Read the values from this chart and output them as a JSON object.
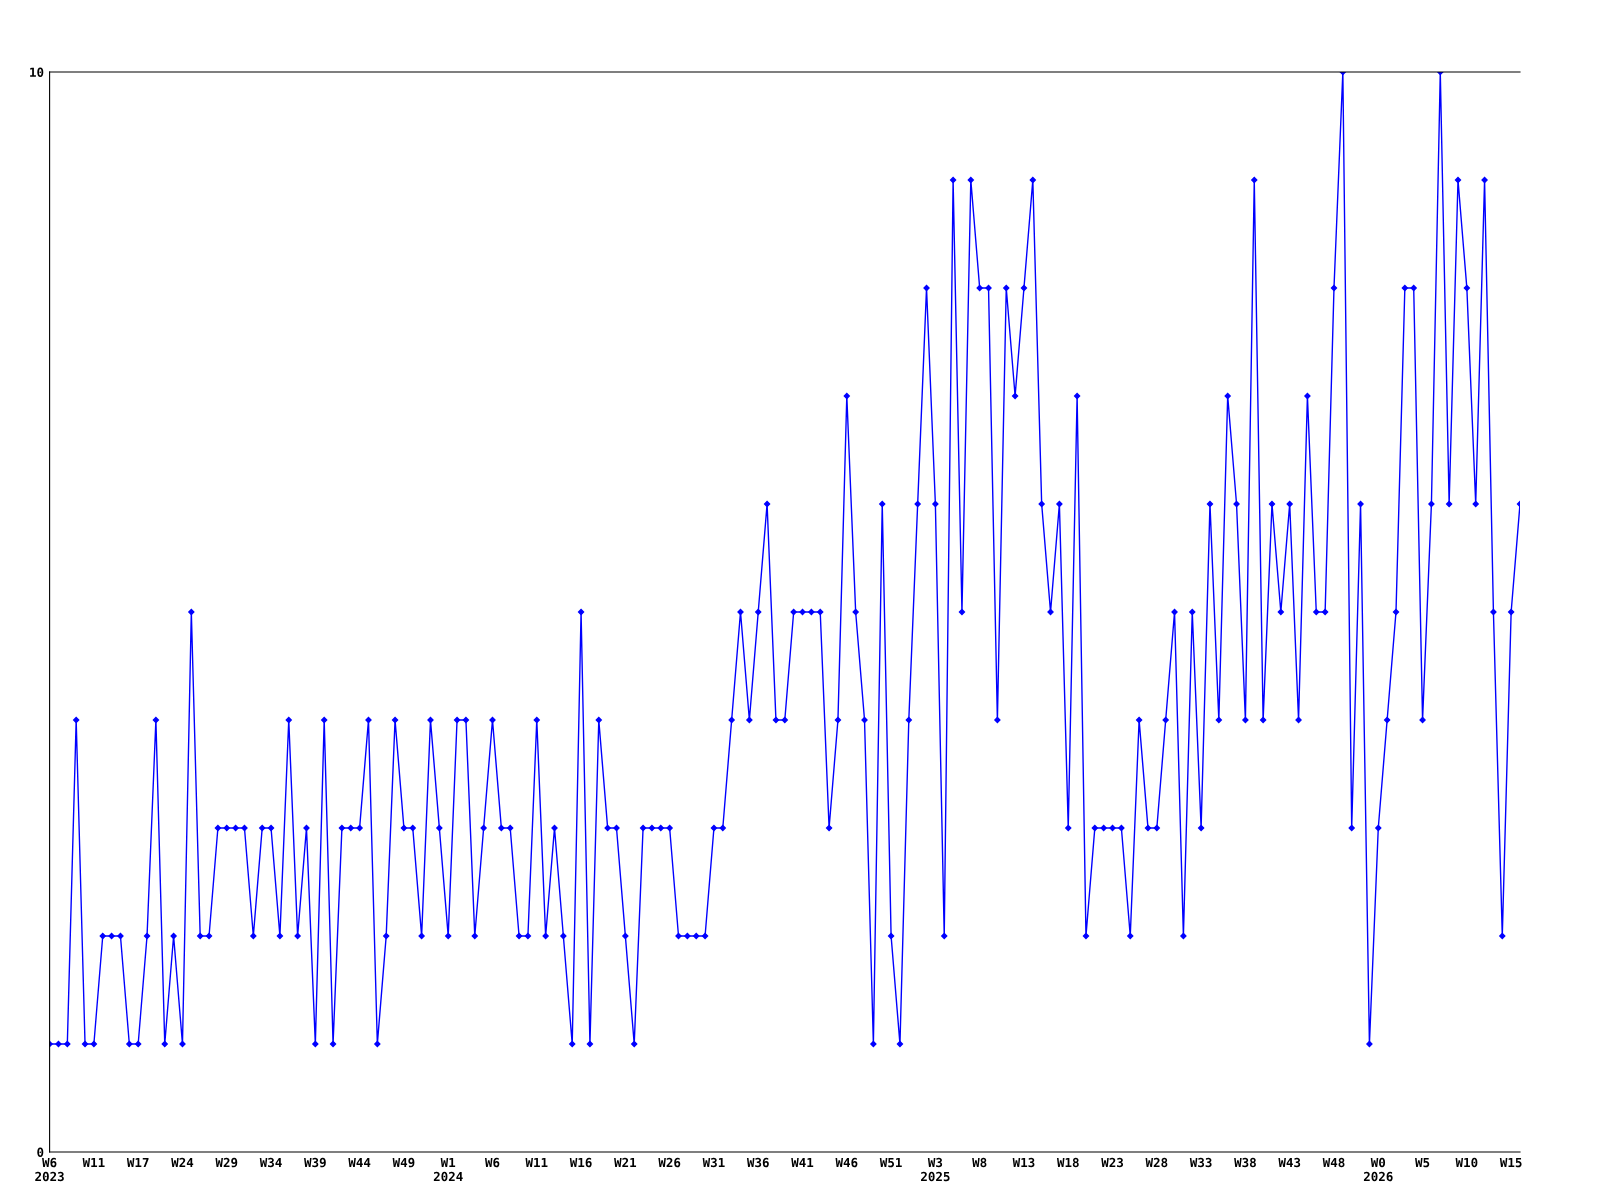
{
  "chart_data": {
    "type": "line",
    "categories": [
      "W6\n2023",
      null,
      null,
      null,
      null,
      "W11",
      null,
      null,
      null,
      null,
      "W17",
      null,
      null,
      null,
      null,
      "W24",
      null,
      null,
      null,
      null,
      "W29",
      null,
      null,
      null,
      null,
      "W34",
      null,
      null,
      null,
      null,
      "W39",
      null,
      null,
      null,
      null,
      "W44",
      null,
      null,
      null,
      null,
      "W49",
      null,
      null,
      null,
      null,
      "W1\n2024",
      null,
      null,
      null,
      null,
      "W6",
      null,
      null,
      null,
      null,
      "W11",
      null,
      null,
      null,
      null,
      "W16",
      null,
      null,
      null,
      null,
      "W21",
      null,
      null,
      null,
      null,
      "W26",
      null,
      null,
      null,
      null,
      "W31",
      null,
      null,
      null,
      null,
      "W36",
      null,
      null,
      null,
      null,
      "W41",
      null,
      null,
      null,
      null,
      "W46",
      null,
      null,
      null,
      null,
      "W51",
      null,
      null,
      null,
      null,
      "W3\n2025",
      null,
      null,
      null,
      null,
      "W8",
      null,
      null,
      null,
      null,
      "W13",
      null,
      null,
      null,
      null,
      "W18",
      null,
      null,
      null,
      null,
      "W23",
      null,
      null,
      null,
      null,
      "W28",
      null,
      null,
      null,
      null,
      "W33",
      null,
      null,
      null,
      null,
      "W38",
      null,
      null,
      null,
      null,
      "W43",
      null,
      null,
      null,
      null,
      "W48",
      null,
      null,
      null,
      null,
      "W0\n2026",
      null,
      null,
      null,
      null,
      "W5",
      null,
      null,
      null,
      null,
      "W10",
      null,
      null,
      null,
      null,
      "W15",
      null
    ],
    "series": [
      {
        "color": "#0000ff",
        "values": [
          1,
          1,
          1,
          4,
          1,
          1,
          2,
          2,
          2,
          1,
          1,
          2,
          4,
          1,
          2,
          1,
          5,
          2,
          2,
          3,
          3,
          3,
          3,
          2,
          3,
          3,
          2,
          4,
          2,
          3,
          1,
          4,
          1,
          3,
          3,
          3,
          4,
          1,
          2,
          4,
          3,
          3,
          2,
          4,
          3,
          2,
          4,
          4,
          2,
          3,
          4,
          3,
          3,
          2,
          2,
          4,
          2,
          3,
          2,
          1,
          5,
          1,
          4,
          3,
          3,
          2,
          1,
          3,
          3,
          3,
          3,
          2,
          2,
          2,
          2,
          3,
          3,
          4,
          5,
          4,
          5,
          6,
          4,
          4,
          5,
          5,
          5,
          5,
          3,
          4,
          7,
          5,
          4,
          1,
          6,
          2,
          1,
          4,
          6,
          8,
          6,
          2,
          9,
          5,
          9,
          8,
          8,
          4,
          8,
          7,
          8,
          9,
          6,
          5,
          6,
          3,
          7,
          2,
          3,
          3,
          3,
          3,
          2,
          4,
          3,
          3,
          4,
          5,
          2,
          5,
          3,
          6,
          4,
          7,
          6,
          4,
          9,
          4,
          6,
          5,
          6,
          4,
          7,
          5,
          5,
          8,
          10,
          3,
          6,
          1,
          3,
          4,
          5,
          8,
          8,
          4,
          6,
          10,
          6,
          9,
          8,
          6,
          9,
          5,
          2,
          5,
          6
        ]
      }
    ],
    "ylim": [
      0,
      10
    ],
    "yticks": [
      0,
      10
    ],
    "grid": false,
    "marker": "diamond",
    "line_style": "solid",
    "legend": false
  }
}
